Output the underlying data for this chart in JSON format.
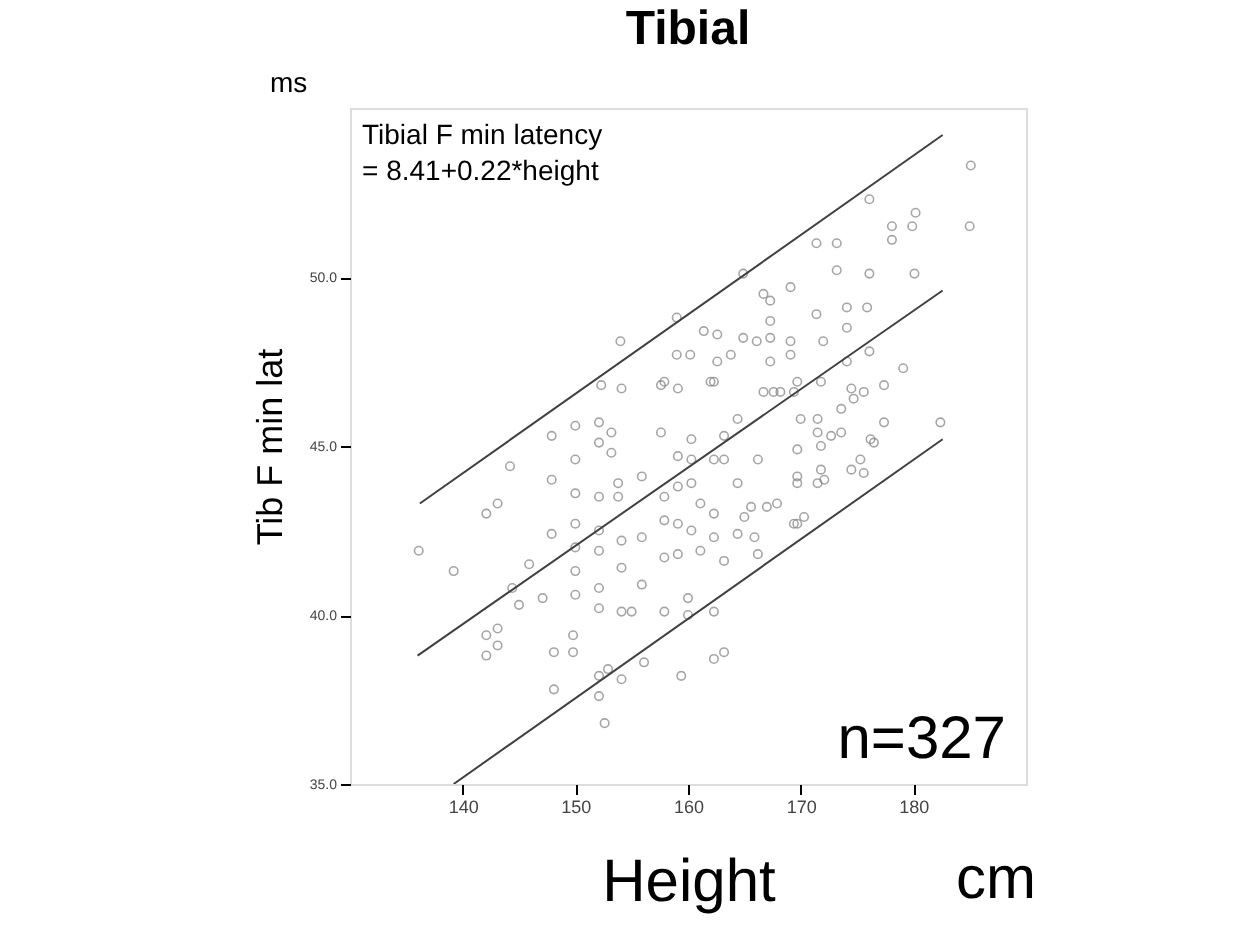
{
  "chart_data": {
    "type": "scatter",
    "title": "Tibial",
    "xlabel": "Height",
    "ylabel": "Tib F min lat",
    "annotations": [
      "ms",
      "cm",
      "Tibial F min latency\n= 8.41+0.22*height",
      "n=327"
    ],
    "xlim": [
      130,
      190
    ],
    "ylim": [
      35,
      55
    ],
    "xticks": [
      140,
      150,
      160,
      170,
      180
    ],
    "yticks": [
      {
        "value": 35,
        "label": "35.0"
      },
      {
        "value": 40,
        "label": "40.0"
      },
      {
        "value": 45,
        "label": "45.0"
      },
      {
        "value": 50,
        "label": "50.0"
      }
    ],
    "marker": "none",
    "series": [
      {
        "marker": "circle",
        "color": "#808080",
        "x": [
          136.1,
          139.2,
          142.1,
          143.1,
          144.2,
          142.1,
          143.1,
          142.1,
          143.1,
          145.9,
          144.4,
          145.0,
          147.1,
          147.9,
          147.9,
          147.9,
          148.1,
          149.8,
          148.1,
          149.8,
          150,
          150,
          150,
          150,
          150,
          150,
          150,
          152.1,
          152.1,
          152.1,
          152.1,
          152.1,
          152.1,
          152.1,
          152.1,
          152.1,
          152.6,
          152.9,
          153.2,
          153.2,
          153.8,
          153.8,
          154.1,
          154.1,
          154.1,
          154.1,
          155.9,
          155.9,
          155.9,
          156.1,
          155.0,
          157.9,
          157.6,
          157.9,
          157.9,
          157.9,
          157.9,
          159.1,
          159.1,
          159.1,
          159.1,
          159.1,
          159.4,
          160.0,
          160.0,
          160.3,
          160.3,
          160.3,
          160.3,
          161.1,
          161.1,
          162.0,
          162.3,
          162.3,
          162.3,
          163.2,
          163.2,
          163.2,
          162.3,
          162.3,
          163.2,
          164.4,
          164.4,
          164.4,
          165.0,
          165.6,
          165.9,
          166.2,
          166.2,
          166.7,
          167.6,
          168.2,
          169.4,
          170.0,
          169.7,
          169.7,
          169.7,
          171.5,
          171.5,
          171.8,
          172.7,
          173.6,
          173.6,
          174.5,
          174.5,
          175.3,
          175.6,
          177.4,
          177.4,
          176.5,
          176.2,
          182.4,
          171.8,
          169.7,
          171.5,
          172.1,
          170.3,
          169.4,
          175.6,
          167.9,
          167.0,
          185.1,
          185.0,
          176.1,
          180.2,
          178.1,
          178.1,
          179.9,
          171.4,
          173.2,
          173.2,
          176.1,
          180.1,
          164.9,
          166.7,
          167.3,
          169.1,
          171.4,
          174.1,
          175.9,
          167.3,
          167.3,
          169.1,
          174.1,
          174.1,
          176.1,
          179.1,
          154.0,
          159.0,
          161.4,
          162.6,
          164.9,
          166.1,
          169.1,
          172.0,
          160.2,
          162.6,
          163.8,
          159.0,
          167.3,
          152.3,
          154.1,
          157.6,
          162.3,
          169.7,
          171.8,
          174.7
        ],
        "values": [
          41.9,
          41.3,
          43.0,
          43.3,
          44.4,
          38.8,
          39.1,
          39.4,
          39.6,
          41.5,
          40.8,
          40.3,
          40.5,
          45.3,
          44.0,
          42.4,
          38.9,
          38.9,
          37.8,
          39.4,
          45.6,
          44.6,
          43.6,
          42.7,
          42.0,
          41.3,
          40.6,
          45.7,
          45.1,
          43.5,
          42.5,
          41.9,
          40.8,
          40.2,
          38.2,
          37.6,
          36.8,
          38.4,
          45.4,
          44.8,
          43.9,
          43.5,
          42.2,
          41.4,
          40.1,
          38.1,
          44.1,
          42.3,
          40.9,
          38.6,
          40.1,
          46.9,
          45.4,
          43.5,
          42.8,
          41.7,
          40.1,
          46.7,
          44.7,
          43.8,
          42.7,
          41.8,
          38.2,
          40.5,
          40.0,
          45.2,
          44.6,
          43.9,
          42.5,
          43.3,
          41.9,
          46.9,
          44.6,
          43.0,
          42.3,
          44.6,
          45.3,
          41.6,
          40.1,
          38.7,
          38.9,
          45.8,
          43.9,
          42.4,
          42.9,
          43.2,
          42.3,
          44.6,
          41.8,
          46.6,
          46.6,
          46.6,
          46.6,
          45.8,
          44.9,
          44.1,
          42.7,
          45.8,
          45.4,
          45.0,
          45.3,
          45.4,
          46.1,
          46.7,
          44.3,
          44.6,
          46.6,
          46.8,
          45.7,
          45.1,
          45.2,
          45.7,
          44.3,
          43.9,
          43.9,
          44.0,
          42.9,
          42.7,
          44.2,
          43.3,
          43.2,
          53.3,
          51.5,
          52.3,
          51.9,
          51.5,
          51.1,
          51.5,
          51.0,
          51.0,
          50.2,
          50.1,
          50.1,
          50.1,
          49.5,
          49.3,
          49.7,
          48.9,
          49.1,
          49.1,
          48.7,
          48.2,
          48.1,
          48.5,
          47.5,
          47.8,
          47.3,
          48.1,
          48.8,
          48.4,
          48.3,
          48.2,
          48.1,
          47.7,
          48.1,
          47.7,
          47.5,
          47.7,
          47.7,
          47.5,
          46.8,
          46.7,
          46.8,
          46.9,
          46.9,
          46.9,
          46.4
        ]
      },
      {
        "type": "line",
        "color": "#404040",
        "x": [
          136.2,
          182.6
        ],
        "values": [
          43.3,
          54.2
        ]
      },
      {
        "type": "line",
        "color": "#404040",
        "x": [
          136.0,
          182.6
        ],
        "values": [
          38.8,
          49.6
        ]
      },
      {
        "type": "line",
        "color": "#404040",
        "x": [
          139.2,
          182.6
        ],
        "values": [
          35.0,
          45.2
        ]
      }
    ]
  }
}
